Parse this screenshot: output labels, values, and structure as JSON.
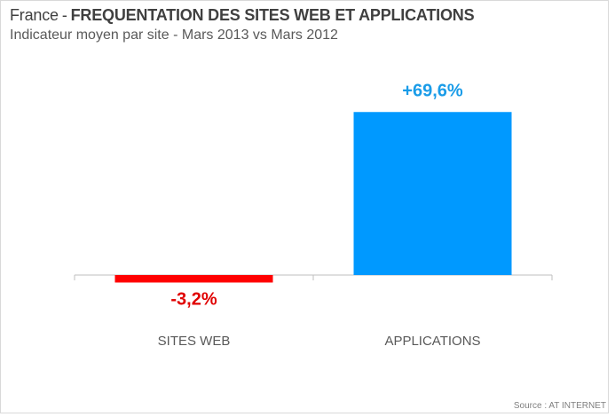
{
  "header": {
    "prefix": "France",
    "separator": "-",
    "title": "FREQUENTATION DES SITES WEB ET APPLICATIONS",
    "subtitle": "Indicateur moyen par site - Mars 2013 vs Mars 2012"
  },
  "footer": {
    "source": "Source : AT INTERNET"
  },
  "colors": {
    "negative": "#ff0000",
    "positive": "#0099ff",
    "negative_label": "#e00000",
    "positive_label": "#1a9ce8",
    "axis": "#bfbfbf"
  },
  "chart_data": {
    "type": "bar",
    "title": "FREQUENTATION DES SITES WEB ET APPLICATIONS",
    "subtitle": "Indicateur moyen par site - Mars 2013 vs Mars 2012",
    "categories": [
      "SITES WEB",
      "APPLICATIONS"
    ],
    "values": [
      -3.2,
      69.6
    ],
    "data_labels": [
      "-3,2%",
      "+69,6%"
    ],
    "ylim": [
      -3.2,
      69.6
    ],
    "grid": false,
    "legend": "none"
  }
}
